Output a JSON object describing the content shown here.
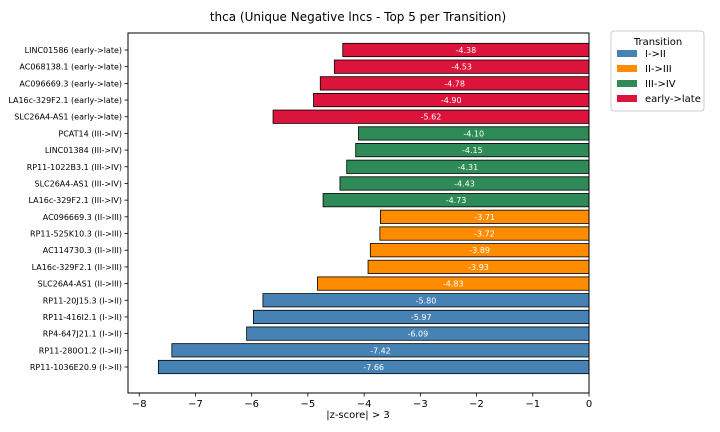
{
  "chart_data": {
    "type": "bar",
    "orientation": "horizontal",
    "title": "thca (Unique Negative lncs - Top 5 per Transition)",
    "xlabel": "|z-score| > 3",
    "ylabel": "",
    "xlim": [
      -8.2,
      0
    ],
    "xticks": [
      -8,
      -7,
      -6,
      -5,
      -4,
      -3,
      -2,
      -1,
      0
    ],
    "xtick_labels": [
      "−8",
      "−7",
      "−6",
      "−5",
      "−4",
      "−3",
      "−2",
      "−1",
      "0"
    ],
    "grid": false,
    "legend": {
      "title": "Transition",
      "placement": "outside-top-right",
      "entries": [
        {
          "label": "I->II",
          "color": "#4682b4"
        },
        {
          "label": "II->III",
          "color": "#ff8c00"
        },
        {
          "label": "III->IV",
          "color": "#2e8b57"
        },
        {
          "label": "early->late",
          "color": "#dc143c"
        }
      ]
    },
    "bars": [
      {
        "category": "LINC01586 (early->late)",
        "value": -4.38,
        "value_label": "-4.38",
        "group": "early->late"
      },
      {
        "category": "AC068138.1 (early->late)",
        "value": -4.53,
        "value_label": "-4.53",
        "group": "early->late"
      },
      {
        "category": "AC096669.3 (early->late)",
        "value": -4.78,
        "value_label": "-4.78",
        "group": "early->late"
      },
      {
        "category": "LA16c-329F2.1 (early->late)",
        "value": -4.9,
        "value_label": "-4.90",
        "group": "early->late"
      },
      {
        "category": "SLC26A4-AS1 (early->late)",
        "value": -5.62,
        "value_label": "-5.62",
        "group": "early->late"
      },
      {
        "category": "PCAT14 (III->IV)",
        "value": -4.1,
        "value_label": "-4.10",
        "group": "III->IV"
      },
      {
        "category": "LINC01384 (III->IV)",
        "value": -4.15,
        "value_label": "-4.15",
        "group": "III->IV"
      },
      {
        "category": "RP11-1022B3.1 (III->IV)",
        "value": -4.31,
        "value_label": "-4.31",
        "group": "III->IV"
      },
      {
        "category": "SLC26A4-AS1 (III->IV)",
        "value": -4.43,
        "value_label": "-4.43",
        "group": "III->IV"
      },
      {
        "category": "LA16c-329F2.1 (III->IV)",
        "value": -4.73,
        "value_label": "-4.73",
        "group": "III->IV"
      },
      {
        "category": "AC096669.3 (II->III)",
        "value": -3.71,
        "value_label": "-3.71",
        "group": "II->III"
      },
      {
        "category": "RP11-525K10.3 (II->III)",
        "value": -3.72,
        "value_label": "-3.72",
        "group": "II->III"
      },
      {
        "category": "AC114730.3 (II->III)",
        "value": -3.89,
        "value_label": "-3.89",
        "group": "II->III"
      },
      {
        "category": "LA16c-329F2.1 (II->III)",
        "value": -3.93,
        "value_label": "-3.93",
        "group": "II->III"
      },
      {
        "category": "SLC26A4-AS1 (II->III)",
        "value": -4.83,
        "value_label": "-4.83",
        "group": "II->III"
      },
      {
        "category": "RP11-20J15.3 (I->II)",
        "value": -5.8,
        "value_label": "-5.80",
        "group": "I->II"
      },
      {
        "category": "RP11-416I2.1 (I->II)",
        "value": -5.97,
        "value_label": "-5.97",
        "group": "I->II"
      },
      {
        "category": "RP4-647J21.1 (I->II)",
        "value": -6.09,
        "value_label": "-6.09",
        "group": "I->II"
      },
      {
        "category": "RP11-280O1.2 (I->II)",
        "value": -7.42,
        "value_label": "-7.42",
        "group": "I->II"
      },
      {
        "category": "RP11-1036E20.9 (I->II)",
        "value": -7.66,
        "value_label": "-7.66",
        "group": "I->II"
      }
    ]
  }
}
